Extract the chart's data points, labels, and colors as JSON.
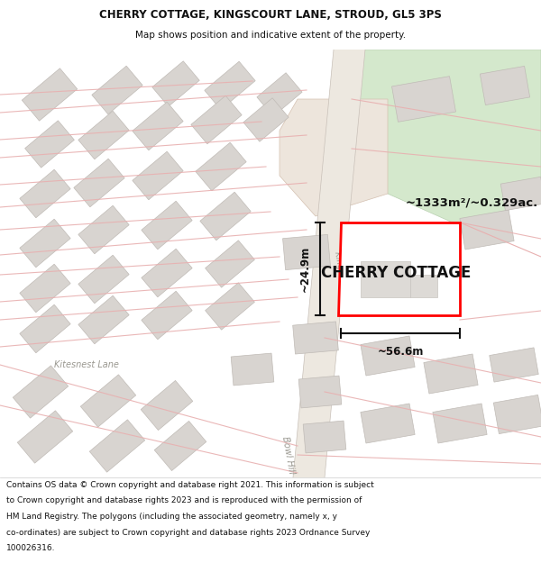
{
  "title_line1": "CHERRY COTTAGE, KINGSCOURT LANE, STROUD, GL5 3PS",
  "title_line2": "Map shows position and indicative extent of the property.",
  "property_label": "CHERRY COTTAGE",
  "area_label": "~1333m²/~0.329ac.",
  "width_label": "~56.6m",
  "height_label": "~24.9m",
  "footer_text": "Contains OS data © Crown copyright and database right 2021. This information is subject to Crown copyright and database rights 2023 and is reproduced with the permission of HM Land Registry. The polygons (including the associated geometry, namely x, y co-ordinates) are subject to Crown copyright and database rights 2023 Ordnance Survey 100026316.",
  "map_bg": "#f7f5f2",
  "plot_outline_color": "#ff0000",
  "building_fill": "#d8d4d0",
  "building_edge": "#c0bbb6",
  "green_fill": "#d4e8cc",
  "green_fill2": "#e8ddd4",
  "road_line_color": "#e8b0b0",
  "header_bg": "#ffffff",
  "footer_bg": "#ffffff",
  "kingscourt_lane_color": "#e0d8d0",
  "dim_line_color": "#111111"
}
